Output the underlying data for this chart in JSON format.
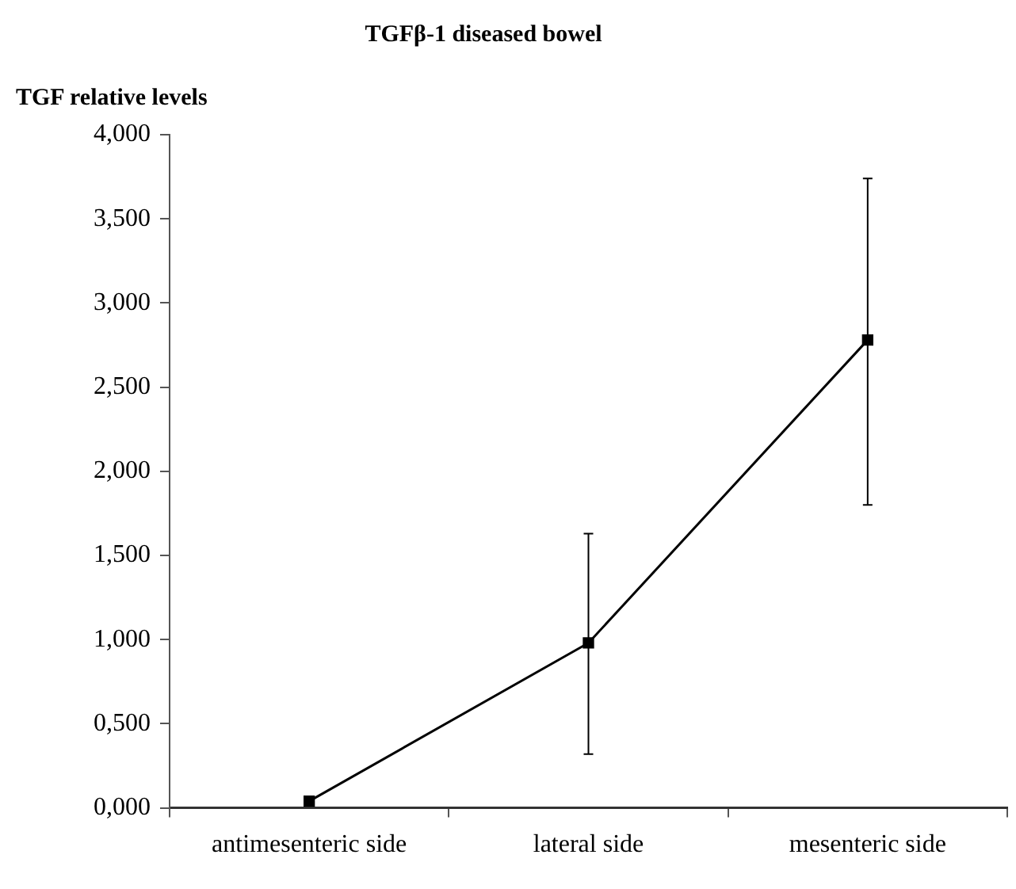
{
  "chart_data": {
    "type": "line",
    "title": "TGFβ-1 diseased bowel",
    "ylabel": "TGF relative levels",
    "categories": [
      "antimesenteric side",
      "lateral side",
      "mesenteric side"
    ],
    "series": [
      {
        "color": "#000000",
        "values": [
          0.04,
          0.98,
          2.78
        ],
        "errors": [
          null,
          [
            0.32,
            1.63
          ],
          [
            1.8,
            3.74
          ]
        ]
      }
    ],
    "ylim": [
      0,
      4
    ],
    "yticks": [
      {
        "value": 0,
        "label": "0,000"
      },
      {
        "value": 0.5,
        "label": "0,500"
      },
      {
        "value": 1,
        "label": "1,000"
      },
      {
        "value": 1.5,
        "label": "1,500"
      },
      {
        "value": 2,
        "label": "2,000"
      },
      {
        "value": 2.5,
        "label": "2,500"
      },
      {
        "value": 3,
        "label": "3,000"
      },
      {
        "value": 3.5,
        "label": "3,500"
      },
      {
        "value": 4,
        "label": "4,000"
      }
    ],
    "grid": false,
    "legend": false,
    "marker": "square",
    "line_style": "solid"
  }
}
